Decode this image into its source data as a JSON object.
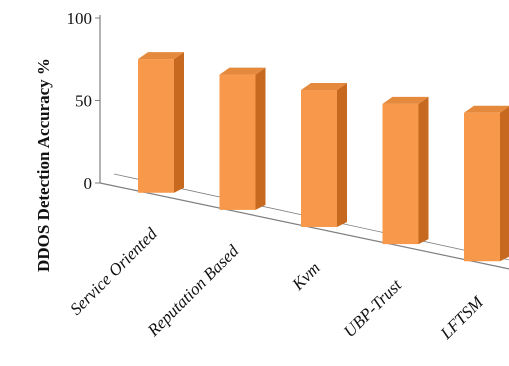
{
  "chart_data": {
    "type": "bar",
    "style": "3d-perspective",
    "ylabel": "DDOS Detection Accuracy %",
    "xlabel": "",
    "ylim": [
      0,
      100
    ],
    "yticks": [
      "0",
      "50",
      "100"
    ],
    "categories": [
      "Service Oriented",
      "Reputation Based",
      "Kvm",
      "UBP-Trust",
      "LFTSM"
    ],
    "values": [
      81,
      82,
      83,
      85,
      90
    ],
    "colors": {
      "bar_front": "#F7984A",
      "bar_side": "#C7691E",
      "bar_top": "#E58A3C",
      "axis": "#7f7f7f"
    }
  }
}
